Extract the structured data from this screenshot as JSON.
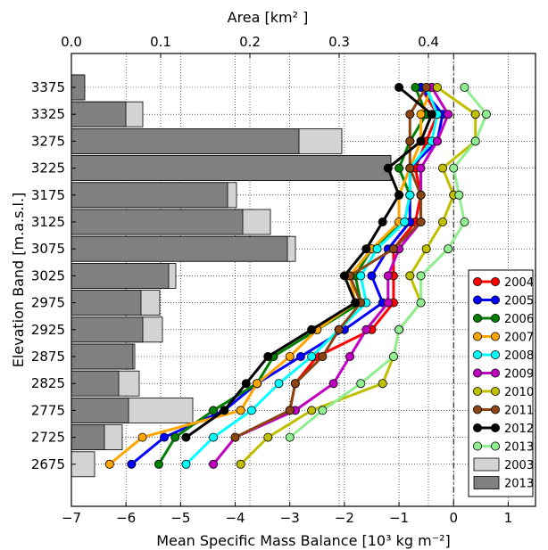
{
  "chart_data": {
    "type": "line",
    "title": "",
    "xlabel": "Mean Specific Mass Balance [10³  kg m⁻²]",
    "ylabel": "Elevation Band [m.a.s.l.]",
    "x2label": "Area [km² ]",
    "xlim": [
      -7,
      1.5
    ],
    "x2lim": [
      0,
      0.52
    ],
    "xticks": [
      -7,
      -6,
      -5,
      -4,
      -3,
      -2,
      -1,
      0,
      1
    ],
    "xtick_labels": [
      "−7",
      "−6",
      "−5",
      "−4",
      "−3",
      "−2",
      "−1",
      "0",
      "1"
    ],
    "x2ticks": [
      0,
      0.1,
      0.2,
      0.3,
      0.4
    ],
    "x2tick_labels": [
      "0.0",
      "0.1",
      "0.2",
      "0.3",
      "0.4"
    ],
    "elevation_bands": [
      3375,
      3325,
      3275,
      3225,
      3175,
      3125,
      3075,
      3025,
      2975,
      2925,
      2875,
      2825,
      2775,
      2725,
      2675
    ],
    "grid": true,
    "legend_position": "lower-right",
    "reference_line_x": 0,
    "series": [
      {
        "name": "2004",
        "color": "#ff0000",
        "values": [
          -0.6,
          -0.3,
          -0.5,
          -0.7,
          -0.6,
          -0.7,
          -1.1,
          -1.1,
          -1.1,
          -1.5,
          -2.5,
          -2.9,
          -3.0,
          null,
          null
        ]
      },
      {
        "name": "2005",
        "color": "#0000ff",
        "values": [
          -0.6,
          -0.2,
          -0.3,
          -0.8,
          -0.8,
          -0.8,
          -1.2,
          -1.5,
          -1.3,
          -2.0,
          -2.8,
          -3.6,
          -4.2,
          -5.3,
          -5.9
        ]
      },
      {
        "name": "2006",
        "color": "#007f00",
        "values": [
          -0.7,
          -0.5,
          -0.8,
          -1.0,
          -0.8,
          -0.9,
          -1.5,
          -1.8,
          -1.7,
          -2.5,
          -3.3,
          -3.6,
          -4.4,
          -5.1,
          -5.4
        ]
      },
      {
        "name": "2007",
        "color": "#ffa500",
        "values": [
          -0.4,
          -0.6,
          -0.6,
          -0.8,
          -1.0,
          -1.0,
          -1.5,
          -1.9,
          -1.8,
          -2.5,
          -3.0,
          -3.6,
          -3.9,
          -5.7,
          -6.3
        ]
      },
      {
        "name": "2008",
        "color": "#00ffff",
        "values": [
          -0.5,
          -0.3,
          -0.4,
          -0.8,
          -0.8,
          -0.9,
          -1.4,
          -1.7,
          -1.6,
          -2.1,
          -2.6,
          -3.2,
          -3.7,
          -4.4,
          -4.9
        ]
      },
      {
        "name": "2009",
        "color": "#bf00bf",
        "values": [
          -0.4,
          -0.1,
          -0.3,
          -0.6,
          -0.6,
          -0.6,
          -1.0,
          -1.2,
          -1.2,
          -1.6,
          -1.9,
          -2.2,
          -2.9,
          -4.0,
          -4.4
        ]
      },
      {
        "name": "2010",
        "color": "#bfbf00",
        "values": [
          -0.3,
          0.4,
          0.4,
          -0.2,
          0.0,
          -0.2,
          -0.5,
          -0.8,
          -0.6,
          -1.0,
          -1.1,
          -1.3,
          -2.6,
          -3.4,
          -3.9
        ]
      },
      {
        "name": "2011",
        "color": "#8b4513",
        "values": [
          -0.5,
          -0.8,
          -0.8,
          -0.8,
          -0.6,
          -0.6,
          -1.1,
          -1.9,
          -1.7,
          -2.1,
          -2.4,
          -2.9,
          -3.0,
          -4.0,
          null
        ]
      },
      {
        "name": "2012",
        "color": "#000000",
        "values": [
          -1.0,
          -0.4,
          -0.6,
          -1.2,
          -1.0,
          -1.3,
          -1.6,
          -2.0,
          -1.8,
          -2.6,
          -3.4,
          -3.8,
          -4.2,
          -4.9,
          null
        ]
      },
      {
        "name": "2013",
        "color": "#90ee90",
        "values": [
          0.2,
          0.6,
          0.4,
          0.0,
          0.1,
          0.2,
          -0.1,
          -0.6,
          -0.6,
          -1.0,
          -1.1,
          -1.7,
          -2.4,
          -3.0,
          null
        ]
      }
    ],
    "area_series": [
      {
        "name": "2003",
        "color": "#d3d3d3",
        "values": [
          0.013,
          0.08,
          0.303,
          0.358,
          0.185,
          0.223,
          0.251,
          0.117,
          0.099,
          0.102,
          0.071,
          0.076,
          0.136,
          0.057,
          0.026
        ]
      },
      {
        "name": "2013",
        "color": "#808080",
        "values": [
          0.015,
          0.061,
          0.255,
          0.358,
          0.175,
          0.192,
          0.242,
          0.109,
          0.078,
          0.08,
          0.069,
          0.053,
          0.064,
          0.037,
          0.0
        ]
      }
    ]
  }
}
